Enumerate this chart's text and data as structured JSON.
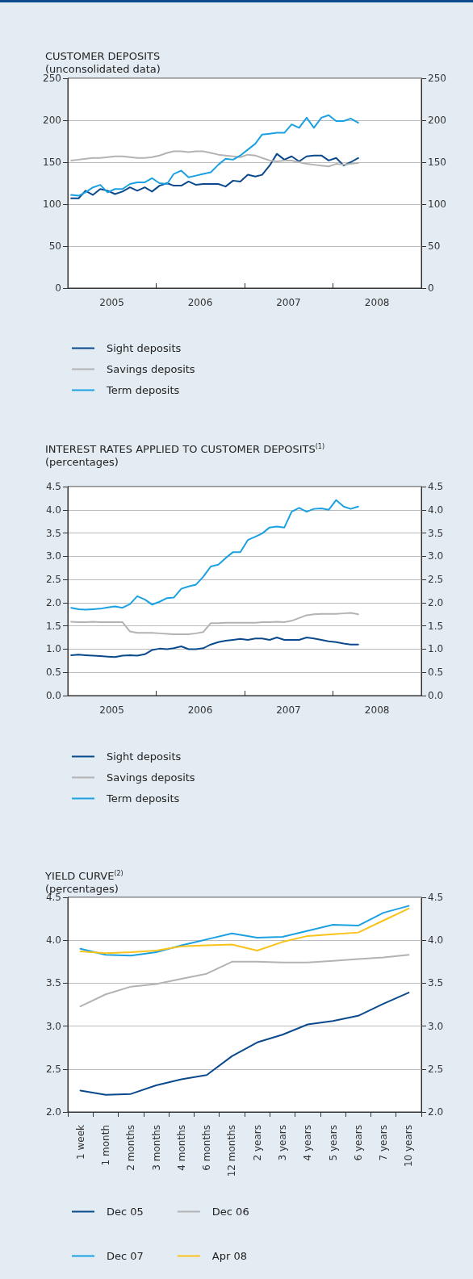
{
  "chart_data": [
    {
      "type": "line",
      "title": "CUSTOMER DEPOSITS",
      "subtitle": "(unconsolidated data)",
      "x": [
        "2005-01-15",
        "2005-02-15",
        "2005-03-15",
        "2005-04-15",
        "2005-05-15",
        "2005-06-15",
        "2005-07-15",
        "2005-08-15",
        "2005-09-15",
        "2005-10-15",
        "2005-11-15",
        "2005-12-15",
        "2006-01-15",
        "2006-02-15",
        "2006-03-15",
        "2006-04-15",
        "2006-05-15",
        "2006-06-15",
        "2006-07-15",
        "2006-08-15",
        "2006-09-15",
        "2006-10-15",
        "2006-11-15",
        "2006-12-15",
        "2007-01-15",
        "2007-02-15",
        "2007-03-15",
        "2007-04-15",
        "2007-05-15",
        "2007-06-15",
        "2007-07-15",
        "2007-08-15",
        "2007-09-15",
        "2007-10-15",
        "2007-11-15",
        "2007-12-15",
        "2008-01-15",
        "2008-02-15",
        "2008-03-15",
        "2008-04-15"
      ],
      "series": [
        {
          "name": "Sight deposits",
          "color": "#0a4a8c",
          "values": [
            107,
            107,
            116,
            111,
            118,
            116,
            112,
            115,
            120,
            116,
            120,
            115,
            122,
            125,
            122,
            122,
            127,
            123,
            124,
            124,
            124,
            121,
            128,
            127,
            135,
            133,
            135,
            146,
            160,
            153,
            157,
            151,
            157,
            158,
            158,
            152,
            155,
            146,
            150,
            155
          ]
        },
        {
          "name": "Savings deposits",
          "color": "#b3b3b3",
          "values": [
            152,
            153,
            154,
            155,
            155,
            156,
            157,
            157,
            156,
            155,
            155,
            156,
            158,
            161,
            163,
            163,
            162,
            163,
            163,
            161,
            159,
            158,
            157,
            156,
            159,
            158,
            155,
            152,
            151,
            152,
            152,
            150,
            148,
            147,
            146,
            145,
            148,
            147,
            148,
            149
          ]
        },
        {
          "name": "Term deposits",
          "color": "#1ba1e2",
          "values": [
            111,
            110,
            114,
            120,
            123,
            114,
            118,
            118,
            124,
            126,
            126,
            131,
            125,
            124,
            136,
            140,
            132,
            134,
            136,
            138,
            147,
            154,
            153,
            158,
            165,
            172,
            183,
            184,
            185,
            185,
            195,
            191,
            203,
            191,
            203,
            206,
            199,
            199,
            202,
            197
          ]
        }
      ],
      "xlim": [
        "2005-01-01",
        "2009-01-01"
      ],
      "xticks": [
        {
          "value": "2006-01-01",
          "label": null
        },
        {
          "value": "2007-01-01",
          "label": null
        },
        {
          "value": "2008-01-01",
          "label": null
        },
        {
          "value": "2005-07-02",
          "label": "2005"
        },
        {
          "value": "2006-07-02",
          "label": "2006"
        },
        {
          "value": "2007-07-02",
          "label": "2007"
        },
        {
          "value": "2008-07-02",
          "label": "2008"
        }
      ],
      "ylim": [
        0,
        250
      ],
      "yticks": [
        0,
        50,
        100,
        150,
        200,
        250
      ],
      "y2lim": [
        0,
        250
      ],
      "y2ticks": [
        0,
        50,
        100,
        150,
        200,
        250
      ],
      "grid": "y",
      "legend": "bottom",
      "marker": "none",
      "line_style": "solid"
    },
    {
      "type": "line",
      "title": "INTEREST RATES APPLIED TO CUSTOMER DEPOSITS$^{(1)}$",
      "subtitle": "(percentages)",
      "x": [
        "2005-01-15",
        "2005-02-15",
        "2005-03-15",
        "2005-04-15",
        "2005-05-15",
        "2005-06-15",
        "2005-07-15",
        "2005-08-15",
        "2005-09-15",
        "2005-10-15",
        "2005-11-15",
        "2005-12-15",
        "2006-01-15",
        "2006-02-15",
        "2006-03-15",
        "2006-04-15",
        "2006-05-15",
        "2006-06-15",
        "2006-07-15",
        "2006-08-15",
        "2006-09-15",
        "2006-10-15",
        "2006-11-15",
        "2006-12-15",
        "2007-01-15",
        "2007-02-15",
        "2007-03-15",
        "2007-04-15",
        "2007-05-15",
        "2007-06-15",
        "2007-07-15",
        "2007-08-15",
        "2007-09-15",
        "2007-10-15",
        "2007-11-15",
        "2007-12-15",
        "2008-01-15",
        "2008-02-15",
        "2008-03-15",
        "2008-04-15"
      ],
      "series": [
        {
          "name": "Sight deposits",
          "color": "#0a4a8c",
          "values": [
            0.87,
            0.88,
            0.87,
            0.86,
            0.85,
            0.84,
            0.83,
            0.86,
            0.87,
            0.86,
            0.89,
            0.98,
            1.01,
            1.0,
            1.02,
            1.06,
            1.0,
            1.0,
            1.02,
            1.1,
            1.15,
            1.18,
            1.2,
            1.22,
            1.2,
            1.23,
            1.23,
            1.2,
            1.25,
            1.2,
            1.2,
            1.2,
            1.25,
            1.23,
            1.2,
            1.17,
            1.15,
            1.12,
            1.1,
            1.1
          ]
        },
        {
          "name": "Savings deposits",
          "color": "#b3b3b3",
          "values": [
            1.59,
            1.58,
            1.58,
            1.59,
            1.58,
            1.58,
            1.58,
            1.58,
            1.38,
            1.35,
            1.35,
            1.35,
            1.34,
            1.33,
            1.32,
            1.32,
            1.32,
            1.34,
            1.37,
            1.56,
            1.56,
            1.57,
            1.57,
            1.57,
            1.57,
            1.57,
            1.58,
            1.58,
            1.59,
            1.58,
            1.61,
            1.67,
            1.73,
            1.75,
            1.76,
            1.76,
            1.76,
            1.77,
            1.78,
            1.75
          ]
        },
        {
          "name": "Term deposits",
          "color": "#1ba1e2",
          "values": [
            1.89,
            1.86,
            1.85,
            1.86,
            1.87,
            1.9,
            1.92,
            1.89,
            1.97,
            2.14,
            2.07,
            1.96,
            2.02,
            2.1,
            2.11,
            2.3,
            2.35,
            2.39,
            2.56,
            2.78,
            2.82,
            2.96,
            3.09,
            3.09,
            3.35,
            3.42,
            3.49,
            3.62,
            3.64,
            3.62,
            3.96,
            4.04,
            3.96,
            4.02,
            4.03,
            4.0,
            4.21,
            4.07,
            4.02,
            4.07
          ]
        }
      ],
      "xlim": [
        "2005-01-01",
        "2009-01-01"
      ],
      "xticks": [
        {
          "value": "2006-01-01",
          "label": null
        },
        {
          "value": "2007-01-01",
          "label": null
        },
        {
          "value": "2008-01-01",
          "label": null
        },
        {
          "value": "2005-07-02",
          "label": "2005"
        },
        {
          "value": "2006-07-02",
          "label": "2006"
        },
        {
          "value": "2007-07-02",
          "label": "2007"
        },
        {
          "value": "2008-07-02",
          "label": "2008"
        }
      ],
      "ylim": [
        0,
        4.5
      ],
      "yticks": [
        {
          "value": 0,
          "label": "0.0"
        },
        0.5,
        {
          "value": 1,
          "label": "1.0"
        },
        1.5,
        {
          "value": 2,
          "label": "2.0"
        },
        2.5,
        {
          "value": 3,
          "label": "3.0"
        },
        3.5,
        {
          "value": 4,
          "label": "4.0"
        },
        4.5
      ],
      "y2lim": [
        0,
        4.5
      ],
      "y2ticks": [
        {
          "value": 0,
          "label": "0.0"
        },
        0.5,
        {
          "value": 1,
          "label": "1.0"
        },
        1.5,
        {
          "value": 2,
          "label": "2.0"
        },
        2.5,
        {
          "value": 3,
          "label": "3.0"
        },
        3.5,
        {
          "value": 4,
          "label": "4.0"
        },
        4.5
      ],
      "grid": "y",
      "legend": "bottom",
      "marker": "none",
      "line_style": "solid"
    },
    {
      "type": "line",
      "title": "YIELD CURVE$^{(2)}$",
      "subtitle": "(percentages)",
      "categories": [
        "1 week",
        "1 month",
        "2 months",
        "3 months",
        "4 months",
        "6 months",
        "12 months",
        "2 years",
        "3 years",
        "4 years",
        "5 years",
        "6 years",
        "7 years",
        "10 years"
      ],
      "series": [
        {
          "name": "Dec 05",
          "color": "#0a4a8c",
          "values": [
            2.25,
            2.2,
            2.21,
            2.31,
            2.38,
            2.43,
            2.65,
            2.81,
            2.9,
            3.02,
            3.06,
            3.12,
            3.26,
            3.39
          ]
        },
        {
          "name": "Dec 06",
          "color": "#b3b3b3",
          "values": [
            3.23,
            3.37,
            3.46,
            3.49,
            3.55,
            3.61,
            3.75,
            3.75,
            3.74,
            3.74,
            3.76,
            3.78,
            3.8,
            3.83
          ]
        },
        {
          "name": "Dec 07",
          "color": "#1ba1e2",
          "values": [
            3.9,
            3.83,
            3.82,
            3.86,
            3.94,
            4.01,
            4.08,
            4.03,
            4.04,
            4.11,
            4.18,
            4.17,
            4.32,
            4.4
          ]
        },
        {
          "name": "Apr 08",
          "color": "#f9c31a",
          "values": [
            3.87,
            3.85,
            3.86,
            3.88,
            3.93,
            3.94,
            3.95,
            3.88,
            3.98,
            4.05,
            4.07,
            4.09,
            4.23,
            4.37
          ]
        }
      ],
      "ylim": [
        2,
        4.5
      ],
      "yticks": [
        {
          "value": 2,
          "label": "2.0"
        },
        2.5,
        {
          "value": 3,
          "label": "3.0"
        },
        3.5,
        {
          "value": 4,
          "label": "4.0"
        },
        4.5
      ],
      "y2lim": [
        2,
        4.5
      ],
      "y2ticks": [
        {
          "value": 2,
          "label": "2.0"
        },
        2.5,
        {
          "value": 3,
          "label": "3.0"
        },
        3.5,
        {
          "value": 4,
          "label": "4.0"
        },
        4.5
      ],
      "grid": "y",
      "legend": "bottom",
      "marker": "none",
      "line_style": "solid"
    }
  ]
}
